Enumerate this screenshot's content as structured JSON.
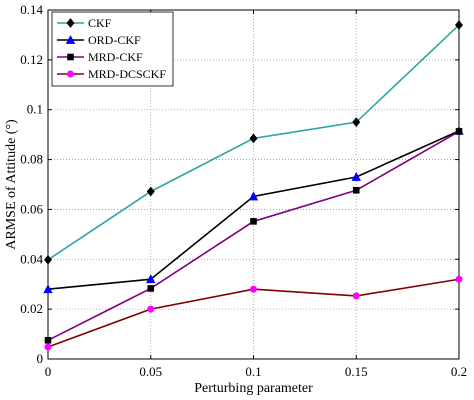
{
  "chart_data": {
    "type": "line",
    "xlabel": "Perturbing parameter",
    "ylabel": "ARMSE of Attitude (°)",
    "xlim": [
      0,
      0.2
    ],
    "ylim": [
      0,
      0.14
    ],
    "grid": true,
    "legend_position": "top-left",
    "x": [
      0,
      0.05,
      0.1,
      0.15,
      0.2
    ],
    "x_tick_labels": [
      "0",
      "0.05",
      "0.1",
      "0.15",
      "0.2"
    ],
    "y_ticks": [
      0,
      0.02,
      0.04,
      0.06,
      0.08,
      0.1,
      0.12,
      0.14
    ],
    "y_tick_labels": [
      "0",
      "0.02",
      "0.04",
      "0.06",
      "0.08",
      "0.1",
      "0.12",
      "0.14"
    ],
    "series": [
      {
        "name": "CKF",
        "color": "#2ca6a4",
        "marker": "diamond",
        "marker_color": "#000000",
        "values": [
          0.0398,
          0.0672,
          0.0885,
          0.095,
          0.134
        ]
      },
      {
        "name": "ORD-CKF",
        "color": "#000000",
        "marker": "triangle",
        "marker_color": "#0000ff",
        "values": [
          0.028,
          0.032,
          0.0652,
          0.073,
          0.0915
        ]
      },
      {
        "name": "MRD-CKF",
        "color": "#800080",
        "marker": "square",
        "marker_color": "#000000",
        "values": [
          0.0075,
          0.0283,
          0.0552,
          0.0677,
          0.0913
        ]
      },
      {
        "name": "MRD-DCSCKF",
        "color": "#800000",
        "marker": "circle",
        "marker_color": "#ff00ff",
        "values": [
          0.0048,
          0.02,
          0.028,
          0.0253,
          0.032
        ]
      }
    ]
  }
}
